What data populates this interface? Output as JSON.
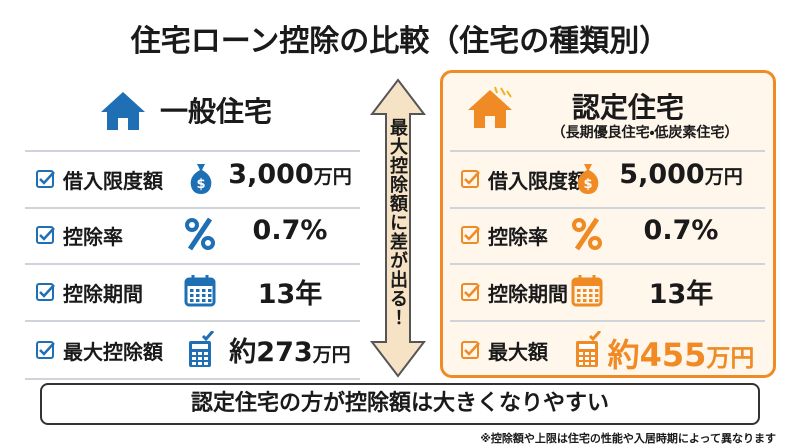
{
  "title": "住宅ローン控除の比較（住宅の種類別）",
  "general": {
    "title": "一般住宅",
    "rows": [
      {
        "label": "借入限度額",
        "value": "3,000",
        "unit": "万円"
      },
      {
        "label": "控除率",
        "value": "0.7%"
      },
      {
        "label": "控除期間",
        "value": "13年"
      },
      {
        "label": "最大控除額",
        "value": "約273",
        "unit": "万円"
      }
    ]
  },
  "arrow_text": "最大控除額に差が出る！",
  "certified": {
    "title": "認定住宅",
    "subtitle": "（長期優良住宅・低炭素住宅）",
    "rows": [
      {
        "label": "借入限度額",
        "value": "5,000",
        "unit": "万円"
      },
      {
        "label": "控除率",
        "value": "0.7%"
      },
      {
        "label": "控除期間",
        "value": "13年"
      },
      {
        "label": "最大額",
        "value": "約455",
        "unit": "万円"
      }
    ]
  },
  "conclusion": "認定住宅の方が控除額は大きくなりやすい",
  "footnote": "※控除額や上限は住宅の性能や入居時期によって異なります"
}
